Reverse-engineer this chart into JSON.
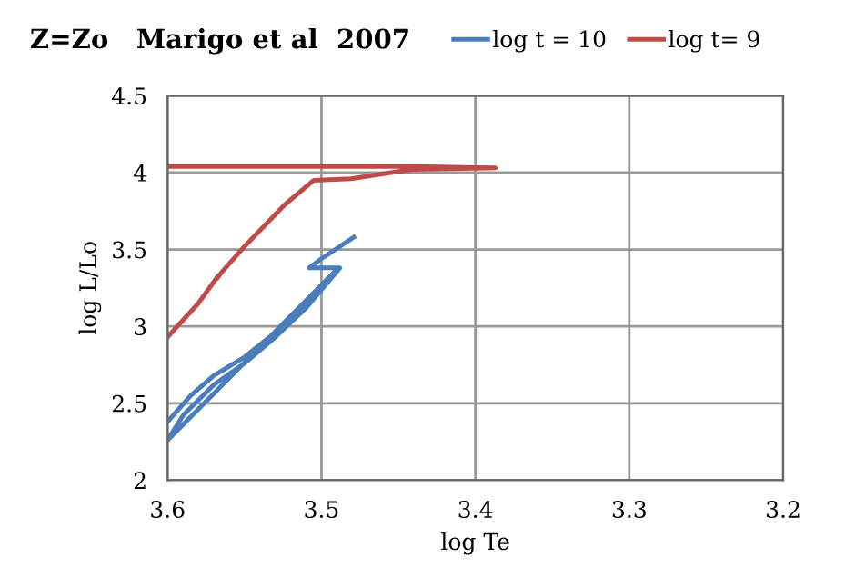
{
  "chart_data": {
    "type": "line",
    "title": "Z=Zo   Marigo et al  2007",
    "xlabel": "log Te",
    "ylabel": "log L/Lo",
    "series": [
      {
        "name": "log t = 10",
        "color": "#4a7ebb",
        "x": [
          3.6,
          3.585,
          3.57,
          3.55,
          3.53,
          3.51,
          3.495,
          3.49,
          3.6,
          3.59,
          3.57,
          3.55,
          3.53,
          3.51,
          3.488,
          3.508,
          3.5,
          3.479
        ],
        "values": [
          2.38,
          2.55,
          2.68,
          2.8,
          2.96,
          3.15,
          3.3,
          3.37,
          2.26,
          2.42,
          2.62,
          2.76,
          2.93,
          3.12,
          3.38,
          3.38,
          3.44,
          3.58
        ]
      },
      {
        "name": "log t= 9",
        "color": "#be4b48",
        "x": [
          3.6,
          3.58,
          3.567,
          3.568,
          3.565,
          3.55,
          3.524,
          3.505,
          3.481,
          3.441,
          3.387,
          3.44,
          3.6
        ],
        "values": [
          2.93,
          3.15,
          3.33,
          3.31,
          3.35,
          3.52,
          3.79,
          3.95,
          3.96,
          4.02,
          4.03,
          4.04,
          4.04
        ]
      }
    ],
    "xlim": [
      3.6,
      3.2
    ],
    "xticks": [
      3.6,
      3.5,
      3.4,
      3.3,
      3.2
    ],
    "ylim": [
      2,
      4.5
    ],
    "yticks": [
      2,
      2.5,
      3,
      3.5,
      4,
      4.5
    ],
    "grid": true,
    "legend": "top"
  }
}
